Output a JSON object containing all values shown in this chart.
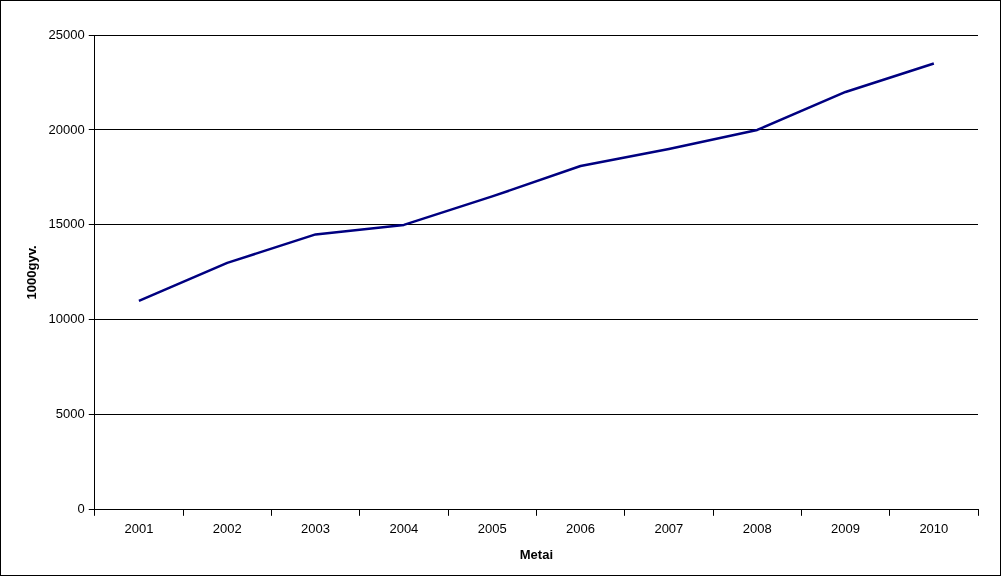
{
  "chart_data": {
    "type": "line",
    "xlabel": "Metai",
    "ylabel": "1000gyv.",
    "categories": [
      "2001",
      "2002",
      "2003",
      "2004",
      "2005",
      "2006",
      "2007",
      "2008",
      "2009",
      "2010"
    ],
    "series": [
      {
        "color": "#000080",
        "values": [
          11000,
          13000,
          14500,
          15000,
          16500,
          18100,
          19000,
          20000,
          22000,
          23500
        ]
      }
    ],
    "ylim": [
      0,
      25000
    ],
    "yticks": [
      0,
      5000,
      10000,
      15000,
      20000,
      25000
    ],
    "grid": "y",
    "legend": false,
    "marker": "none",
    "line_style": "solid"
  }
}
